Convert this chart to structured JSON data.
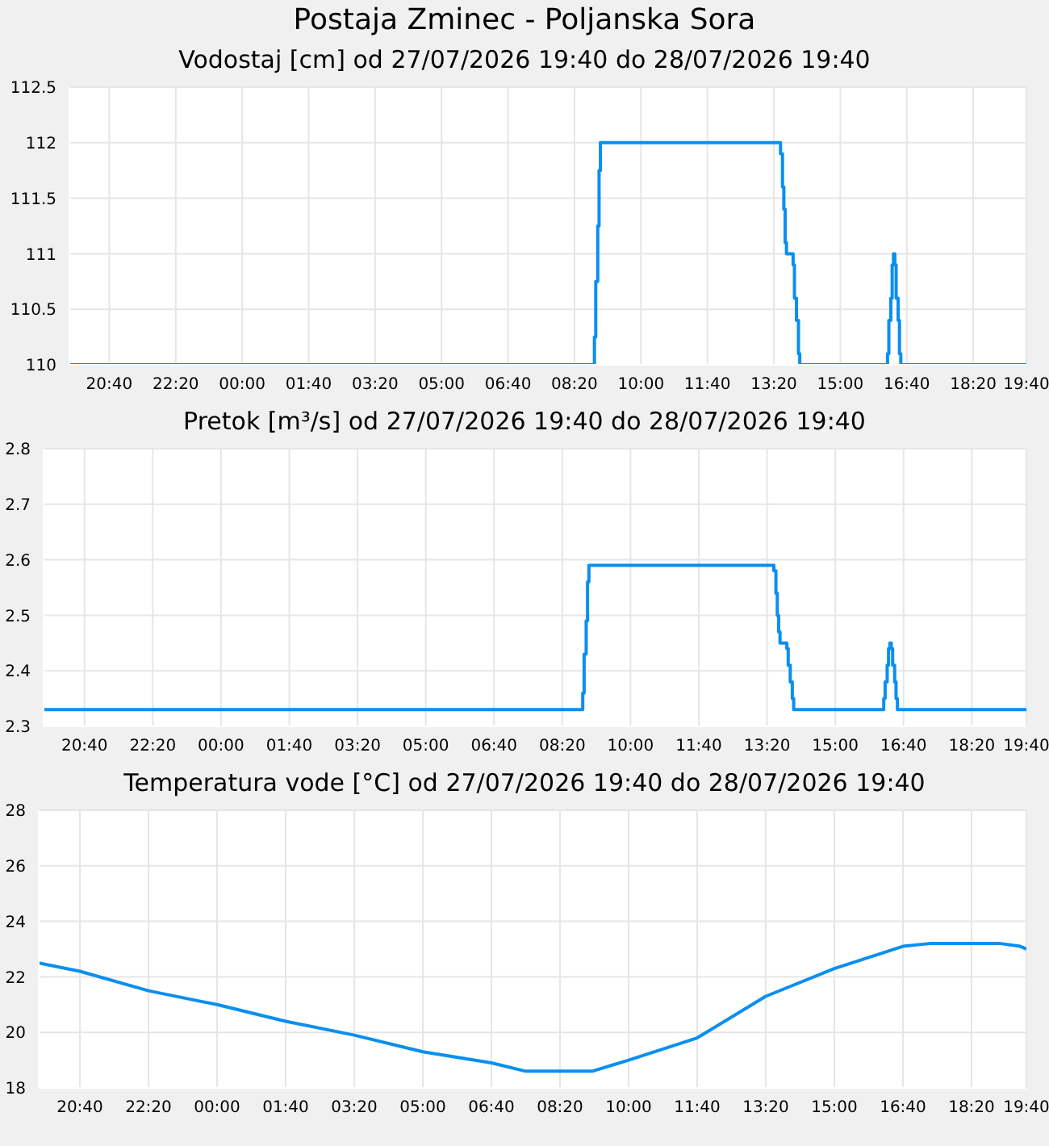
{
  "chart_data": [
    {
      "type": "step",
      "title": "Postaja Zminec - Poljanska Sora",
      "subtitle": "Vodostaj [cm] od 27/07/2026 19:40 do 28/07/2026 19:40",
      "x": [
        "2026-07-27T19:40",
        "2026-07-28T08:50",
        "2026-07-28T08:52",
        "2026-07-28T08:55",
        "2026-07-28T08:57",
        "2026-07-28T08:59",
        "2026-07-28T13:30",
        "2026-07-28T13:33",
        "2026-07-28T13:35",
        "2026-07-28T13:37",
        "2026-07-28T13:39",
        "2026-07-28T13:49",
        "2026-07-28T13:51",
        "2026-07-28T13:54",
        "2026-07-28T13:57",
        "2026-07-28T13:59",
        "2026-07-28T16:11",
        "2026-07-28T16:13",
        "2026-07-28T16:16",
        "2026-07-28T16:18",
        "2026-07-28T16:20",
        "2026-07-28T16:22",
        "2026-07-28T16:24",
        "2026-07-28T16:27",
        "2026-07-28T16:29",
        "2026-07-28T16:31",
        "2026-07-28T19:40"
      ],
      "series": [
        {
          "color": "#0a8ff0",
          "values": [
            110,
            110.25,
            110.75,
            111.25,
            111.75,
            112,
            111.9,
            111.6,
            111.4,
            111.1,
            111,
            110.9,
            110.6,
            110.4,
            110.1,
            110,
            110.1,
            110.4,
            110.6,
            110.9,
            111,
            110.9,
            110.6,
            110.4,
            110.1,
            110,
            110
          ]
        }
      ],
      "xlim": [
        "2026-07-27T19:40",
        "2026-07-28T19:40"
      ],
      "xticks": [
        {
          "value": "2026-07-27T20:40",
          "label": "20:40"
        },
        {
          "value": "2026-07-27T22:20",
          "label": "22:20"
        },
        {
          "value": "2026-07-28T00:00",
          "label": "00:00"
        },
        {
          "value": "2026-07-28T01:40",
          "label": "01:40"
        },
        {
          "value": "2026-07-28T03:20",
          "label": "03:20"
        },
        {
          "value": "2026-07-28T05:00",
          "label": "05:00"
        },
        {
          "value": "2026-07-28T06:40",
          "label": "06:40"
        },
        {
          "value": "2026-07-28T08:20",
          "label": "08:20"
        },
        {
          "value": "2026-07-28T10:00",
          "label": "10:00"
        },
        {
          "value": "2026-07-28T11:40",
          "label": "11:40"
        },
        {
          "value": "2026-07-28T13:20",
          "label": "13:20"
        },
        {
          "value": "2026-07-28T15:00",
          "label": "15:00"
        },
        {
          "value": "2026-07-28T16:40",
          "label": "16:40"
        },
        {
          "value": "2026-07-28T18:20",
          "label": "18:20"
        },
        {
          "value": "2026-07-28T19:40",
          "label": "19:40"
        }
      ],
      "ylim": [
        110,
        112.5
      ],
      "yticks": [
        110,
        110.5,
        111,
        111.5,
        112,
        112.5
      ],
      "grid": true,
      "legend": false
    },
    {
      "type": "step",
      "title": "Pretok [m³/s] od 27/07/2026 19:40 do 28/07/2026 19:40",
      "x": [
        "2026-07-27T19:40",
        "2026-07-28T08:50",
        "2026-07-28T08:52",
        "2026-07-28T08:55",
        "2026-07-28T08:57",
        "2026-07-28T08:59",
        "2026-07-28T13:30",
        "2026-07-28T13:33",
        "2026-07-28T13:35",
        "2026-07-28T13:37",
        "2026-07-28T13:39",
        "2026-07-28T13:49",
        "2026-07-28T13:51",
        "2026-07-28T13:54",
        "2026-07-28T13:57",
        "2026-07-28T13:59",
        "2026-07-28T16:11",
        "2026-07-28T16:13",
        "2026-07-28T16:16",
        "2026-07-28T16:18",
        "2026-07-28T16:20",
        "2026-07-28T16:22",
        "2026-07-28T16:24",
        "2026-07-28T16:27",
        "2026-07-28T16:29",
        "2026-07-28T16:31",
        "2026-07-28T19:40"
      ],
      "series": [
        {
          "color": "#0a8ff0",
          "values": [
            2.33,
            2.36,
            2.43,
            2.49,
            2.56,
            2.59,
            2.58,
            2.54,
            2.5,
            2.47,
            2.45,
            2.44,
            2.41,
            2.38,
            2.35,
            2.33,
            2.35,
            2.38,
            2.41,
            2.44,
            2.45,
            2.44,
            2.41,
            2.38,
            2.35,
            2.33,
            2.33
          ]
        }
      ],
      "xlim": [
        "2026-07-27T19:40",
        "2026-07-28T19:40"
      ],
      "xticks": [
        {
          "value": "2026-07-27T20:40",
          "label": "20:40"
        },
        {
          "value": "2026-07-27T22:20",
          "label": "22:20"
        },
        {
          "value": "2026-07-28T00:00",
          "label": "00:00"
        },
        {
          "value": "2026-07-28T01:40",
          "label": "01:40"
        },
        {
          "value": "2026-07-28T03:20",
          "label": "03:20"
        },
        {
          "value": "2026-07-28T05:00",
          "label": "05:00"
        },
        {
          "value": "2026-07-28T06:40",
          "label": "06:40"
        },
        {
          "value": "2026-07-28T08:20",
          "label": "08:20"
        },
        {
          "value": "2026-07-28T10:00",
          "label": "10:00"
        },
        {
          "value": "2026-07-28T11:40",
          "label": "11:40"
        },
        {
          "value": "2026-07-28T13:20",
          "label": "13:20"
        },
        {
          "value": "2026-07-28T15:00",
          "label": "15:00"
        },
        {
          "value": "2026-07-28T16:40",
          "label": "16:40"
        },
        {
          "value": "2026-07-28T18:20",
          "label": "18:20"
        },
        {
          "value": "2026-07-28T19:40",
          "label": "19:40"
        }
      ],
      "ylim": [
        2.3,
        2.8
      ],
      "yticks": [
        2.3,
        2.4,
        2.5,
        2.6,
        2.7,
        2.8
      ],
      "grid": true,
      "legend": false
    },
    {
      "type": "line",
      "title": "Temperatura vode [°C] od 27/07/2026 19:40 do 28/07/2026 19:40",
      "x": [
        "2026-07-27T19:40",
        "2026-07-27T20:40",
        "2026-07-27T22:20",
        "2026-07-28T00:00",
        "2026-07-28T01:40",
        "2026-07-28T03:20",
        "2026-07-28T05:00",
        "2026-07-28T06:40",
        "2026-07-28T07:30",
        "2026-07-28T09:07",
        "2026-07-28T10:00",
        "2026-07-28T11:40",
        "2026-07-28T13:20",
        "2026-07-28T15:00",
        "2026-07-28T16:40",
        "2026-07-28T17:19",
        "2026-07-28T19:02",
        "2026-07-28T19:31",
        "2026-07-28T19:40"
      ],
      "series": [
        {
          "color": "#0a8ff0",
          "values": [
            22.5,
            22.2,
            21.5,
            21.0,
            20.4,
            19.9,
            19.3,
            18.9,
            18.6,
            18.6,
            19.0,
            19.8,
            21.3,
            22.3,
            23.1,
            23.2,
            23.2,
            23.1,
            23.0
          ]
        }
      ],
      "xlim": [
        "2026-07-27T19:40",
        "2026-07-28T19:40"
      ],
      "xticks": [
        {
          "value": "2026-07-27T20:40",
          "label": "20:40"
        },
        {
          "value": "2026-07-27T22:20",
          "label": "22:20"
        },
        {
          "value": "2026-07-28T00:00",
          "label": "00:00"
        },
        {
          "value": "2026-07-28T01:40",
          "label": "01:40"
        },
        {
          "value": "2026-07-28T03:20",
          "label": "03:20"
        },
        {
          "value": "2026-07-28T05:00",
          "label": "05:00"
        },
        {
          "value": "2026-07-28T06:40",
          "label": "06:40"
        },
        {
          "value": "2026-07-28T08:20",
          "label": "08:20"
        },
        {
          "value": "2026-07-28T10:00",
          "label": "10:00"
        },
        {
          "value": "2026-07-28T11:40",
          "label": "11:40"
        },
        {
          "value": "2026-07-28T13:20",
          "label": "13:20"
        },
        {
          "value": "2026-07-28T15:00",
          "label": "15:00"
        },
        {
          "value": "2026-07-28T16:40",
          "label": "16:40"
        },
        {
          "value": "2026-07-28T18:20",
          "label": "18:20"
        },
        {
          "value": "2026-07-28T19:40",
          "label": "19:40"
        }
      ],
      "ylim": [
        18,
        28
      ],
      "yticks": [
        18,
        20,
        22,
        24,
        26,
        28
      ],
      "grid": true,
      "legend": false
    }
  ]
}
